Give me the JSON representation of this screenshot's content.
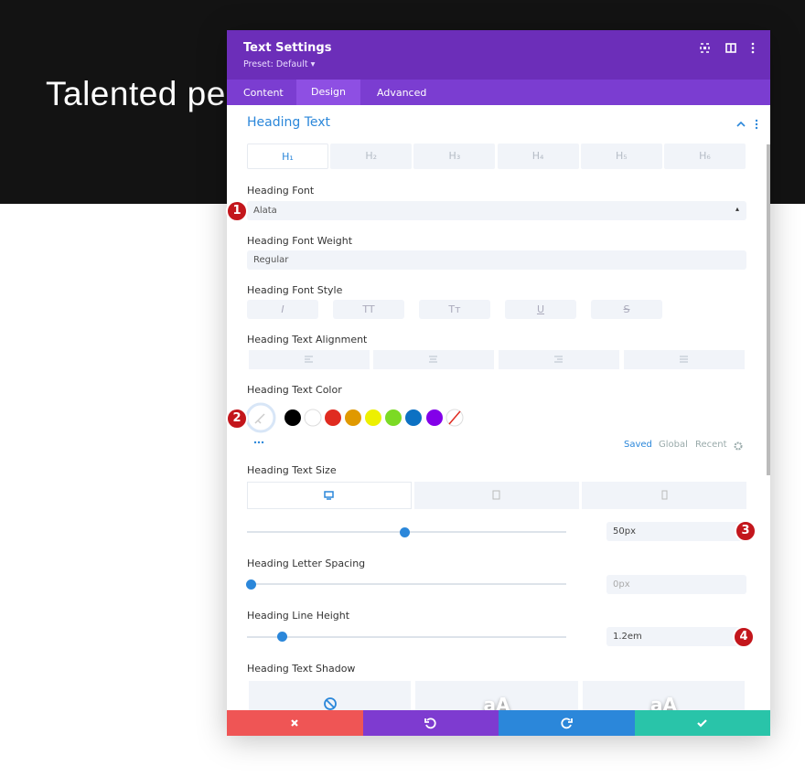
{
  "background": {
    "heading": "Talented pe"
  },
  "modal": {
    "title": "Text Settings",
    "preset": "Preset: Default",
    "tabs": [
      "Content",
      "Design",
      "Advanced"
    ],
    "section": "Heading Text",
    "heading_tabs": [
      "H₁",
      "H₂",
      "H₃",
      "H₄",
      "H₅",
      "H₆"
    ],
    "fields": [
      {
        "label": "Heading Font",
        "value": "Alata"
      },
      {
        "label": "Heading Font Weight",
        "value": "Regular"
      },
      {
        "label": "Heading Font Style",
        "options": [
          "I",
          "TT",
          "Tт",
          "U",
          "S"
        ]
      },
      {
        "label": "Heading Text Alignment"
      },
      {
        "label": "Heading Text Color"
      },
      {
        "label": "Heading Text Size",
        "value": "50px"
      },
      {
        "label": "Heading Letter Spacing",
        "value": "0px"
      },
      {
        "label": "Heading Line Height",
        "value": "1.2em"
      },
      {
        "label": "Heading Text Shadow"
      }
    ],
    "palette_tabs": [
      "Saved",
      "Global",
      "Recent"
    ],
    "shadow_previews": [
      "aA",
      "aA"
    ]
  },
  "badges": [
    "1",
    "2",
    "3",
    "4"
  ]
}
